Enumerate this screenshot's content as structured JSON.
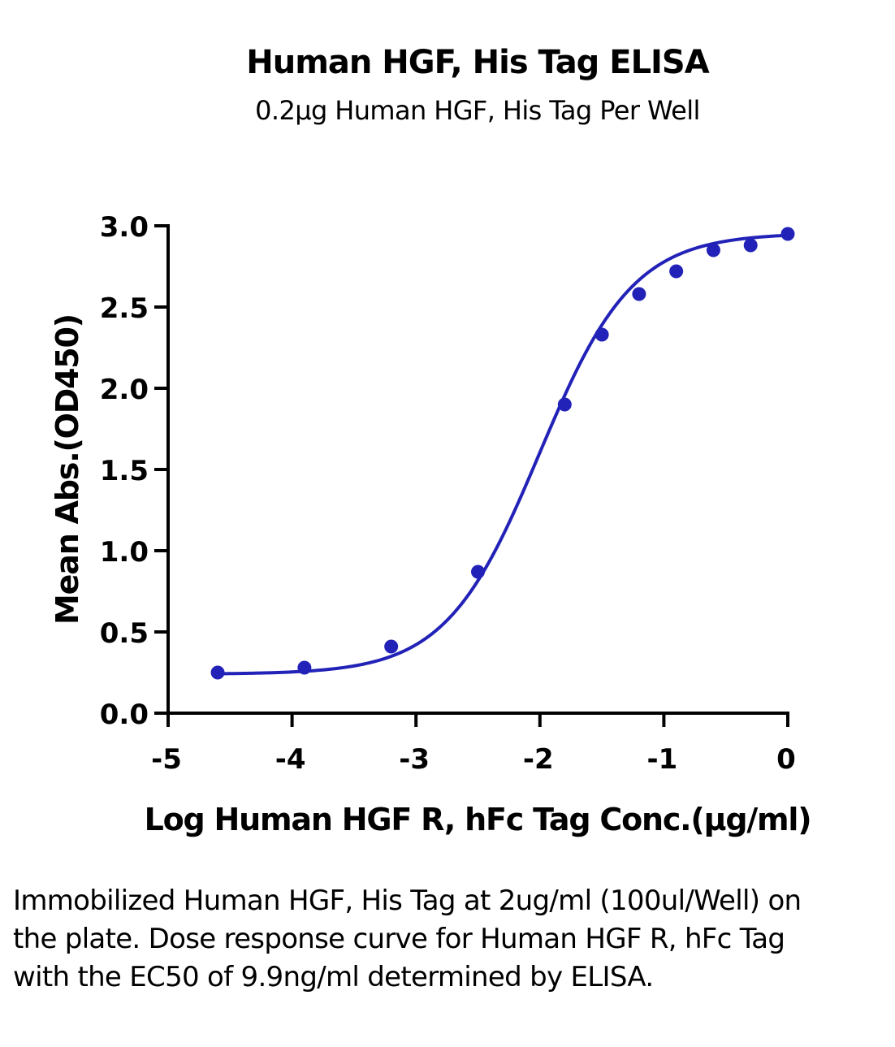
{
  "chart_data": {
    "type": "scatter",
    "title": "Human HGF, His Tag ELISA",
    "subtitle": "0.2μg Human HGF, His Tag Per Well",
    "xlabel": "Log Human HGF R, hFc Tag Conc.(μg/ml)",
    "ylabel": "Mean Abs.(OD450)",
    "xlim": [
      -5,
      0
    ],
    "ylim": [
      0,
      3.0
    ],
    "x_ticks": [
      -5,
      -4,
      -3,
      -2,
      -1,
      0
    ],
    "x_tick_labels": [
      "-5",
      "-4",
      "-3",
      "-2",
      "-1",
      "0"
    ],
    "y_ticks": [
      0,
      0.5,
      1.0,
      1.5,
      2.0,
      2.5,
      3.0
    ],
    "y_tick_labels": [
      "0.0",
      "0.5",
      "1.0",
      "1.5",
      "2.0",
      "2.5",
      "3.0"
    ],
    "grid": false,
    "color": "#2222B8",
    "series": [
      {
        "points": [
          {
            "x": -4.6,
            "y": 0.25
          },
          {
            "x": -3.9,
            "y": 0.28
          },
          {
            "x": -3.2,
            "y": 0.41
          },
          {
            "x": -2.5,
            "y": 0.87
          },
          {
            "x": -1.8,
            "y": 1.9
          },
          {
            "x": -1.5,
            "y": 2.33
          },
          {
            "x": -1.2,
            "y": 2.58
          },
          {
            "x": -0.9,
            "y": 2.72
          },
          {
            "x": -0.6,
            "y": 2.85
          },
          {
            "x": -0.3,
            "y": 2.88
          },
          {
            "x": 0.0,
            "y": 2.95
          }
        ]
      }
    ]
  },
  "caption": "Immobilized Human HGF, His Tag at 2ug/ml (100ul/Well) on the plate. Dose response curve for Human HGF R, hFc Tag with the EC50 of 9.9ng/ml determined by ELISA."
}
